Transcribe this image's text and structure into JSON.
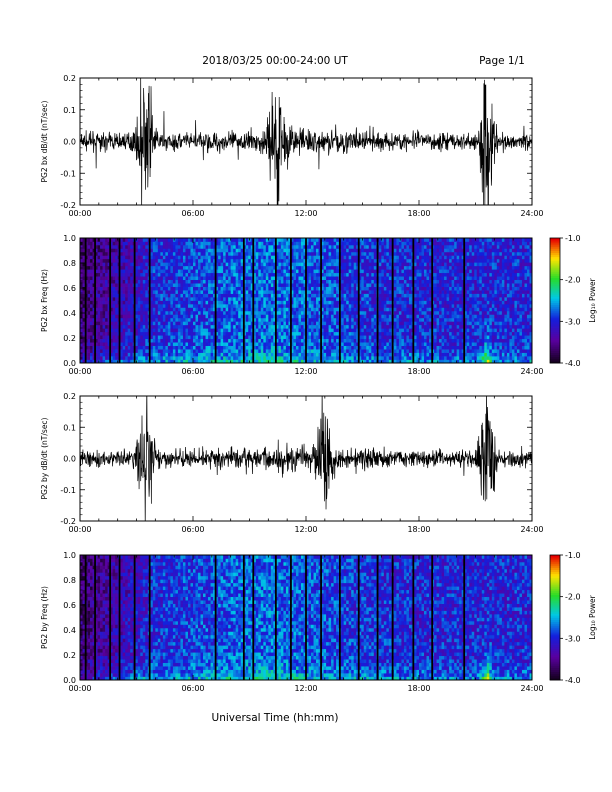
{
  "header": {
    "title": "2018/03/25  00:00-24:00 UT",
    "page": "Page 1/1"
  },
  "footer": {
    "xlabel": "Universal Time (hh:mm)"
  },
  "chart_data": [
    {
      "type": "line",
      "ylabel": "PG2 bx dB/dt (nT/sec)",
      "xlim": [
        0,
        24
      ],
      "ylim": [
        -0.2,
        0.2
      ],
      "xticks": [
        "00:00",
        "06:00",
        "12:00",
        "18:00",
        "24:00"
      ],
      "yticks": [
        "-0.2",
        "-0.1",
        "0.0",
        "0.1",
        "0.2"
      ],
      "bursts": [
        {
          "t_hours": 3.5,
          "amplitude": 0.2
        },
        {
          "t_hours": 10.5,
          "amplitude": 0.17
        },
        {
          "t_hours": 21.6,
          "amplitude": 0.2
        }
      ]
    },
    {
      "type": "heatmap",
      "ylabel": "PG2 bx Freq (Hz)",
      "xlim": [
        0,
        24
      ],
      "ylim": [
        0,
        1.0
      ],
      "xticks": [
        "00:00",
        "06:00",
        "12:00",
        "18:00",
        "24:00"
      ],
      "yticks": [
        "0.0",
        "0.2",
        "0.4",
        "0.6",
        "0.8",
        "1.0"
      ],
      "colorbar": {
        "label": "Log₁₀ Power",
        "range": [
          -4.0,
          -1.0
        ],
        "ticks": [
          "-1.0",
          "-2.0",
          "-3.0",
          "-4.0"
        ]
      },
      "gap_lines_hours": [
        0.3,
        0.8,
        1.6,
        2.1,
        2.9,
        3.7,
        7.2,
        8.7,
        9.2,
        10.4,
        11.2,
        12.0,
        12.8,
        13.8,
        14.8,
        15.8,
        16.6,
        17.7,
        18.7,
        20.4
      ]
    },
    {
      "type": "line",
      "ylabel": "PG2 by dB/dt (nT/sec)",
      "xlim": [
        0,
        24
      ],
      "ylim": [
        -0.2,
        0.2
      ],
      "xticks": [
        "00:00",
        "06:00",
        "12:00",
        "18:00",
        "24:00"
      ],
      "yticks": [
        "-0.2",
        "-0.1",
        "0.0",
        "0.1",
        "0.2"
      ],
      "bursts": [
        {
          "t_hours": 3.5,
          "amplitude": 0.2
        },
        {
          "t_hours": 13.0,
          "amplitude": 0.13
        },
        {
          "t_hours": 21.6,
          "amplitude": 0.2
        }
      ]
    },
    {
      "type": "heatmap",
      "ylabel": "PG2 by Freq (Hz)",
      "xlim": [
        0,
        24
      ],
      "ylim": [
        0,
        1.0
      ],
      "xticks": [
        "00:00",
        "06:00",
        "12:00",
        "18:00",
        "24:00"
      ],
      "yticks": [
        "0.0",
        "0.2",
        "0.4",
        "0.6",
        "0.8",
        "1.0"
      ],
      "colorbar": {
        "label": "Log₁₀ Power",
        "range": [
          -4.0,
          -1.0
        ],
        "ticks": [
          "-1.0",
          "-2.0",
          "-3.0",
          "-4.0"
        ]
      },
      "gap_lines_hours": [
        0.3,
        0.8,
        1.6,
        2.1,
        2.9,
        3.7,
        7.2,
        8.7,
        9.2,
        10.4,
        11.2,
        12.0,
        12.8,
        13.8,
        14.8,
        15.8,
        16.6,
        17.7,
        18.7,
        20.4
      ]
    }
  ]
}
